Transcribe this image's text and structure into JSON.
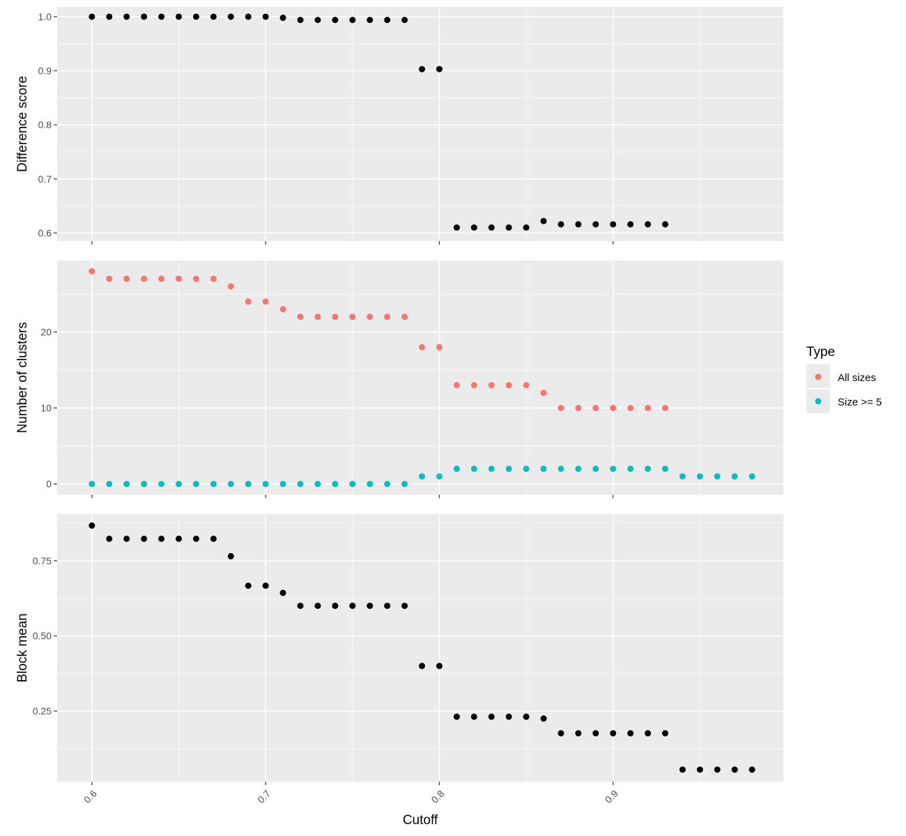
{
  "chart_data": {
    "type": "scatter",
    "xlabel": "Cutoff",
    "x_ticks": [
      "0.6",
      "0.7",
      "0.8",
      "0.9"
    ],
    "x_tick_values": [
      0.6,
      0.7,
      0.8,
      0.9
    ],
    "xlim": [
      0.58,
      0.998
    ],
    "legend": {
      "title": "Type",
      "placement": "right",
      "entries": [
        {
          "label": "All sizes",
          "color": "#F8766D"
        },
        {
          "label": "Size >= 5",
          "color": "#00BFC4"
        }
      ]
    },
    "colors": {
      "panel_bg": "#EBEBEB",
      "grid": "#FFFFFF",
      "point_default": "#000000",
      "all_sizes": "#F8766D",
      "size5": "#00BFC4"
    },
    "panels": [
      {
        "ylabel": "Difference score",
        "ylim": [
          0.585,
          1.018
        ],
        "y_ticks": [
          "0.6",
          "0.7",
          "0.8",
          "0.9",
          "1.0"
        ],
        "y_tick_values": [
          0.6,
          0.7,
          0.8,
          0.9,
          1.0
        ],
        "y_minor": [
          0.65,
          0.75,
          0.85,
          0.95
        ],
        "series": [
          {
            "color": "#000000",
            "x": [
              0.6,
              0.61,
              0.62,
              0.63,
              0.64,
              0.65,
              0.66,
              0.67,
              0.68,
              0.69,
              0.7,
              0.71,
              0.72,
              0.73,
              0.74,
              0.75,
              0.76,
              0.77,
              0.78,
              0.79,
              0.8,
              0.81,
              0.82,
              0.83,
              0.84,
              0.85,
              0.86,
              0.87,
              0.88,
              0.89,
              0.9,
              0.91,
              0.92,
              0.93
            ],
            "y": [
              1.0,
              1.0,
              1.0,
              1.0,
              1.0,
              1.0,
              1.0,
              1.0,
              1.0,
              1.0,
              1.0,
              0.998,
              0.994,
              0.994,
              0.994,
              0.994,
              0.994,
              0.994,
              0.994,
              0.903,
              0.903,
              0.61,
              0.61,
              0.61,
              0.61,
              0.61,
              0.622,
              0.616,
              0.616,
              0.616,
              0.616,
              0.616,
              0.616,
              0.616
            ]
          }
        ]
      },
      {
        "ylabel": "Number of clusters",
        "ylim": [
          -1.4,
          29.4
        ],
        "y_ticks": [
          "0",
          "10",
          "20"
        ],
        "y_tick_values": [
          0,
          10,
          20
        ],
        "y_minor": [
          5,
          15,
          25
        ],
        "series": [
          {
            "name": "All sizes",
            "color": "#F8766D",
            "x": [
              0.6,
              0.61,
              0.62,
              0.63,
              0.64,
              0.65,
              0.66,
              0.67,
              0.68,
              0.69,
              0.7,
              0.71,
              0.72,
              0.73,
              0.74,
              0.75,
              0.76,
              0.77,
              0.78,
              0.79,
              0.8,
              0.81,
              0.82,
              0.83,
              0.84,
              0.85,
              0.86,
              0.87,
              0.88,
              0.89,
              0.9,
              0.91,
              0.92,
              0.93
            ],
            "y": [
              28,
              27,
              27,
              27,
              27,
              27,
              27,
              27,
              26,
              24,
              24,
              23,
              22,
              22,
              22,
              22,
              22,
              22,
              22,
              18,
              18,
              13,
              13,
              13,
              13,
              13,
              12,
              10,
              10,
              10,
              10,
              10,
              10,
              10
            ]
          },
          {
            "name": "Size >= 5",
            "color": "#00BFC4",
            "x": [
              0.6,
              0.61,
              0.62,
              0.63,
              0.64,
              0.65,
              0.66,
              0.67,
              0.68,
              0.69,
              0.7,
              0.71,
              0.72,
              0.73,
              0.74,
              0.75,
              0.76,
              0.77,
              0.78,
              0.79,
              0.8,
              0.81,
              0.82,
              0.83,
              0.84,
              0.85,
              0.86,
              0.87,
              0.88,
              0.89,
              0.9,
              0.91,
              0.92,
              0.93,
              0.94,
              0.95,
              0.96,
              0.97,
              0.98
            ],
            "y": [
              0,
              0,
              0,
              0,
              0,
              0,
              0,
              0,
              0,
              0,
              0,
              0,
              0,
              0,
              0,
              0,
              0,
              0,
              0,
              1,
              1,
              2,
              2,
              2,
              2,
              2,
              2,
              2,
              2,
              2,
              2,
              2,
              2,
              2,
              1,
              1,
              1,
              1,
              1
            ]
          }
        ]
      },
      {
        "ylabel": "Block mean",
        "ylim": [
          0.015,
          0.905
        ],
        "y_ticks": [
          "0.25",
          "0.50",
          "0.75"
        ],
        "y_tick_values": [
          0.25,
          0.5,
          0.75
        ],
        "y_minor": [
          0.125,
          0.375,
          0.625,
          0.875
        ],
        "series": [
          {
            "color": "#000000",
            "x": [
              0.6,
              0.61,
              0.62,
              0.63,
              0.64,
              0.65,
              0.66,
              0.67,
              0.68,
              0.69,
              0.7,
              0.71,
              0.72,
              0.73,
              0.74,
              0.75,
              0.76,
              0.77,
              0.78,
              0.79,
              0.8,
              0.81,
              0.82,
              0.83,
              0.84,
              0.85,
              0.86,
              0.87,
              0.88,
              0.89,
              0.9,
              0.91,
              0.92,
              0.93,
              0.94,
              0.95,
              0.96,
              0.97,
              0.98
            ],
            "y": [
              0.867,
              0.823,
              0.823,
              0.823,
              0.823,
              0.823,
              0.823,
              0.823,
              0.765,
              0.667,
              0.667,
              0.643,
              0.6,
              0.6,
              0.6,
              0.6,
              0.6,
              0.6,
              0.6,
              0.4,
              0.4,
              0.231,
              0.231,
              0.231,
              0.231,
              0.231,
              0.225,
              0.176,
              0.176,
              0.176,
              0.176,
              0.176,
              0.176,
              0.176,
              0.055,
              0.055,
              0.055,
              0.055,
              0.055
            ]
          }
        ]
      }
    ]
  }
}
